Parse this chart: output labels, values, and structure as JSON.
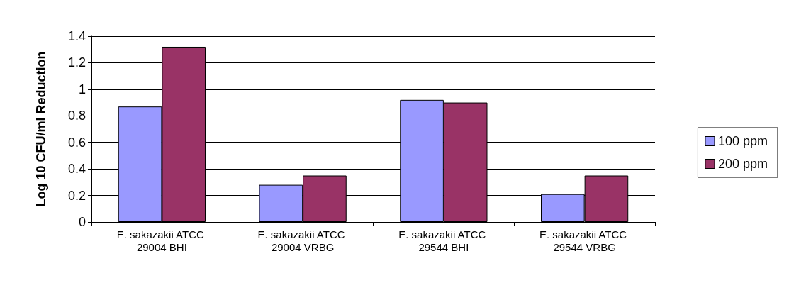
{
  "chart_data": {
    "type": "bar",
    "ylabel": "Log 10 CFU/ml Reduction",
    "categories": [
      "E. sakazakii ATCC 29004 BHI",
      "E. sakazakii ATCC 29004 VRBG",
      "E. sakazakii ATCC 29544 BHI",
      "E. sakazakii ATCC 29544 VRBG"
    ],
    "series": [
      {
        "name": "100 ppm",
        "color": "#9999ff",
        "values": [
          0.87,
          0.28,
          0.92,
          0.21
        ]
      },
      {
        "name": "200 ppm",
        "color": "#993366",
        "values": [
          1.32,
          0.35,
          0.9,
          0.35
        ]
      }
    ],
    "ylim": [
      0,
      1.4
    ],
    "yticks": [
      0,
      0.2,
      0.4,
      0.6,
      0.8,
      1,
      1.2,
      1.4
    ],
    "grid": "y",
    "legend": "right"
  }
}
